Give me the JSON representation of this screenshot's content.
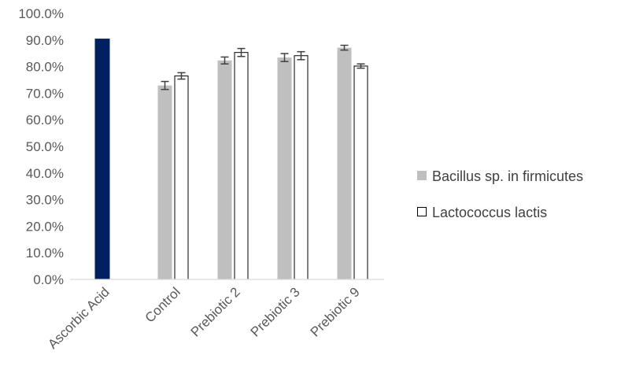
{
  "chart_data": {
    "type": "bar",
    "title": "",
    "xlabel": "",
    "ylabel": "",
    "ylim": [
      0,
      1
    ],
    "yticks": [
      {
        "value": 0.0,
        "label": "0.0%"
      },
      {
        "value": 0.1,
        "label": "10.0%"
      },
      {
        "value": 0.2,
        "label": "20.0%"
      },
      {
        "value": 0.3,
        "label": "30.0%"
      },
      {
        "value": 0.4,
        "label": "40.0%"
      },
      {
        "value": 0.5,
        "label": "50.0%"
      },
      {
        "value": 0.6,
        "label": "60.0%"
      },
      {
        "value": 0.7,
        "label": "70.0%"
      },
      {
        "value": 0.8,
        "label": "80.0%"
      },
      {
        "value": 0.9,
        "label": "90.0%"
      },
      {
        "value": 1.0,
        "label": "100.0%"
      }
    ],
    "grid": false,
    "legend_position": "right",
    "categories": [
      "Ascorbic Acid",
      "Control",
      "Prebiotic 2",
      "Prebiotic 3",
      "Prebiotic 9"
    ],
    "reference": {
      "category": "Ascorbic Acid",
      "value": 0.905,
      "color": "#002060"
    },
    "series": [
      {
        "name": "Bacillus sp. in firmicutes",
        "color": "#bfbfbf",
        "style": "filled",
        "values": [
          null,
          0.729,
          0.823,
          0.834,
          0.871
        ],
        "errors": [
          null,
          0.015,
          0.013,
          0.015,
          0.009
        ]
      },
      {
        "name": "Lactococcus lactis",
        "color": "#ffffff",
        "style": "outline",
        "values": [
          null,
          0.765,
          0.853,
          0.841,
          0.802
        ],
        "errors": [
          null,
          0.012,
          0.015,
          0.015,
          0.008
        ]
      }
    ]
  }
}
